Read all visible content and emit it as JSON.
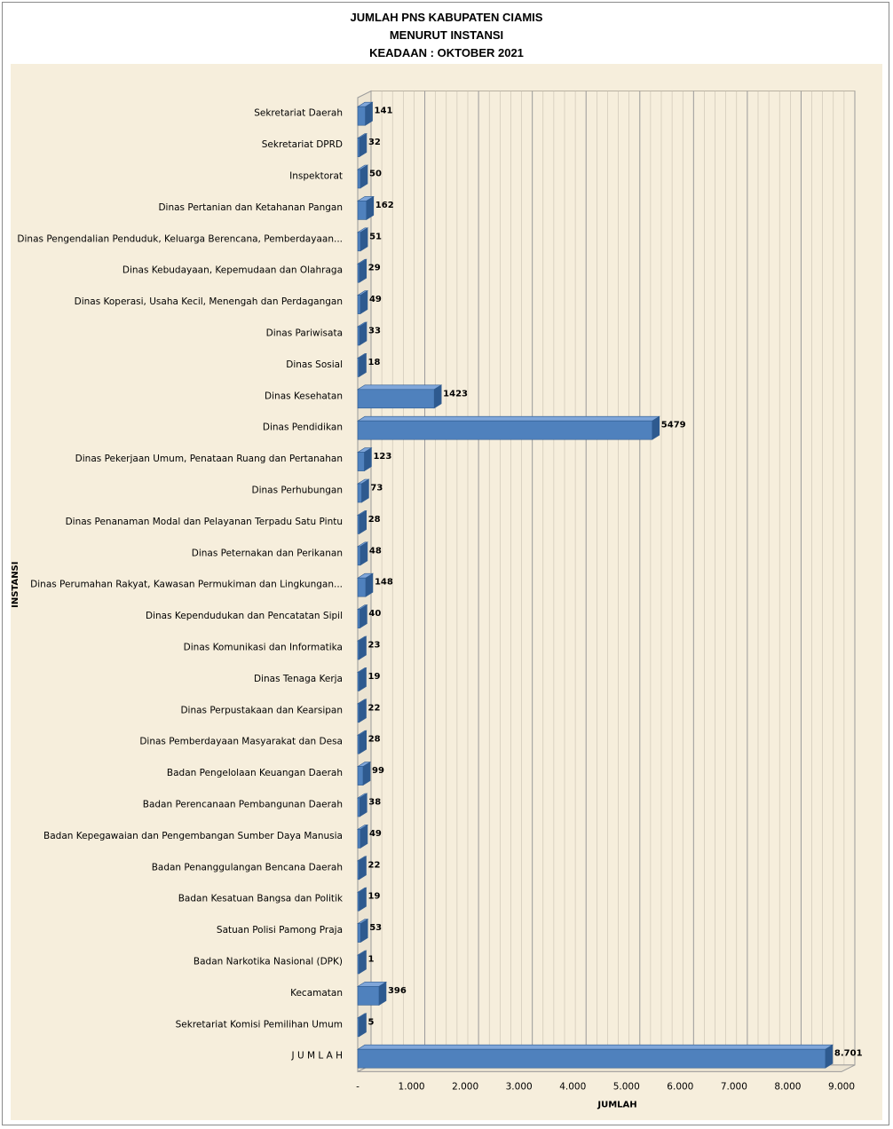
{
  "title_lines": [
    "JUMLAH PNS KABUPATEN CIAMIS",
    "MENURUT INSTANSI",
    "KEADAAN : OKTOBER 2021"
  ],
  "colors": {
    "bar": "#4F81BD",
    "bar_top": "#7FA6D9",
    "bar_side": "#2E5A8F",
    "plot_bg": "#F6EEDC",
    "gridline": "#9A9A9A"
  },
  "chart_data": {
    "type": "bar",
    "orientation": "horizontal",
    "title": "JUMLAH PNS KABUPATEN CIAMIS MENURUT INSTANSI KEADAAN : OKTOBER 2021",
    "xlabel": "JUMLAH",
    "ylabel": "INSTANSI",
    "xlim": [
      0,
      9000
    ],
    "x_ticks": [
      "-",
      "1.000",
      "2.000",
      "3.000",
      "4.000",
      "5.000",
      "6.000",
      "7.000",
      "8.000",
      "9.000"
    ],
    "grid": true,
    "three_d": true,
    "categories": [
      "Sekretariat Daerah",
      "Sekretariat DPRD",
      "Inspektorat",
      "Dinas Pertanian dan Ketahanan Pangan",
      "Dinas Pengendalian Penduduk, Keluarga Berencana, Pemberdayaan...",
      "Dinas Kebudayaan, Kepemudaan dan Olahraga",
      "Dinas Koperasi, Usaha Kecil, Menengah dan Perdagangan",
      "Dinas Pariwisata",
      "Dinas Sosial",
      "Dinas Kesehatan",
      "Dinas Pendidikan",
      "Dinas Pekerjaan Umum, Penataan Ruang dan Pertanahan",
      "Dinas Perhubungan",
      "Dinas Penanaman Modal dan Pelayanan Terpadu Satu Pintu",
      "Dinas Peternakan dan Perikanan",
      "Dinas Perumahan Rakyat, Kawasan Permukiman dan Lingkungan...",
      "Dinas Kependudukan dan Pencatatan Sipil",
      "Dinas Komunikasi dan Informatika",
      "Dinas Tenaga Kerja",
      "Dinas Perpustakaan dan Kearsipan",
      "Dinas Pemberdayaan Masyarakat dan Desa",
      "Badan Pengelolaan Keuangan Daerah",
      "Badan Perencanaan Pembangunan Daerah",
      "Badan Kepegawaian dan Pengembangan Sumber Daya Manusia",
      "Badan Penanggulangan Bencana Daerah",
      "Badan Kesatuan Bangsa dan Politik",
      "Satuan Polisi Pamong Praja",
      "Badan Narkotika Nasional (DPK)",
      "Kecamatan",
      "Sekretariat Komisi Pemilihan Umum",
      "J U M L A H"
    ],
    "values": [
      141,
      32,
      50,
      162,
      51,
      29,
      49,
      33,
      18,
      1423,
      5479,
      123,
      73,
      28,
      48,
      148,
      40,
      23,
      19,
      22,
      28,
      99,
      38,
      49,
      22,
      19,
      53,
      1,
      396,
      5,
      8701
    ],
    "data_labels": [
      "141",
      "32",
      "50",
      "162",
      "51",
      "29",
      "49",
      "33",
      "18",
      "1423",
      "5479",
      "123",
      "73",
      "28",
      "48",
      "148",
      "40",
      "23",
      "19",
      "22",
      "28",
      "99",
      "38",
      "49",
      "22",
      "19",
      "53",
      "1",
      "396",
      "5",
      "8.701"
    ]
  }
}
